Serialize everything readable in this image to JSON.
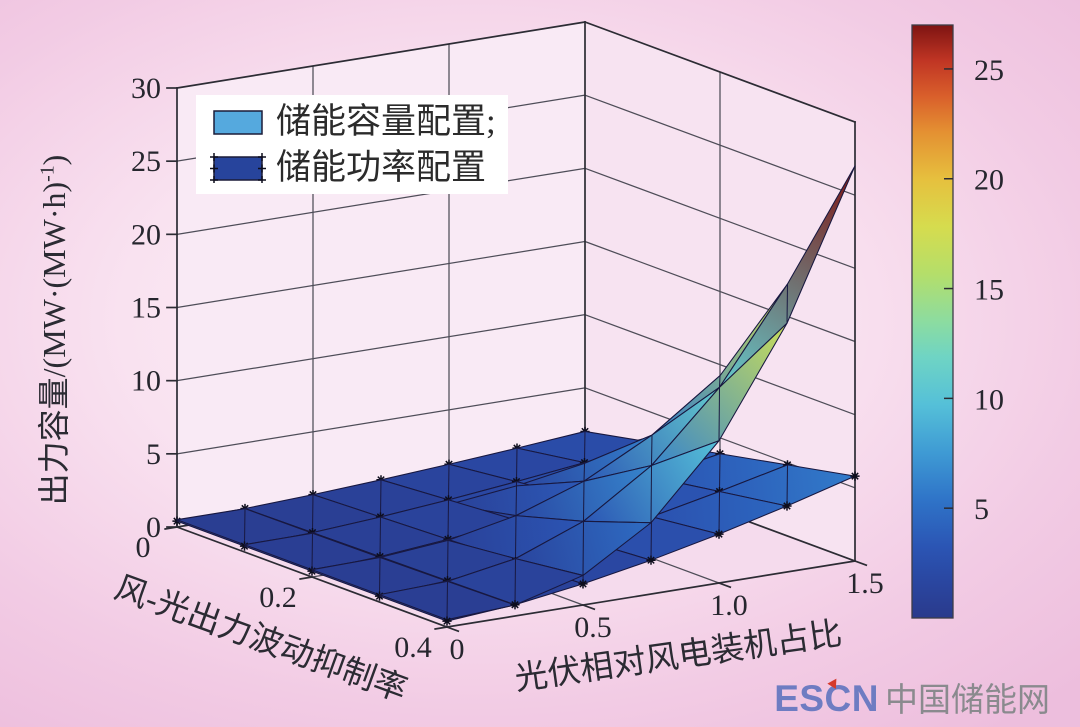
{
  "legend": {
    "items": [
      {
        "label": "储能容量配置;",
        "color": "#55a9de",
        "markers": false
      },
      {
        "label": "储能功率配置",
        "color": "#27449c",
        "markers": true
      }
    ]
  },
  "axes": {
    "z": {
      "label_main": "出力容量/(MW·(MW·h)",
      "label_sup": "-1",
      "label_close": ")",
      "tick_values": [
        0,
        5,
        10,
        15,
        20,
        25,
        30
      ],
      "tick_labels": [
        "0",
        "5",
        "10",
        "15",
        "20",
        "25",
        "30"
      ]
    },
    "x": {
      "label": "光伏相对风电装机占比",
      "tick_values": [
        0,
        0.5,
        1.0,
        1.5
      ],
      "tick_labels": [
        "0",
        "0.5",
        "1.0",
        "1.5"
      ]
    },
    "y": {
      "label": "风-光出力波动抑制率",
      "tick_values": [
        0,
        0.2,
        0.4
      ],
      "tick_labels": [
        "0",
        "0.2",
        "0.4"
      ]
    }
  },
  "colorbar": {
    "min": 0,
    "max": 27,
    "tick_values": [
      5,
      10,
      15,
      20,
      25
    ],
    "tick_labels": [
      "5",
      "10",
      "15",
      "20",
      "25"
    ],
    "position": "right"
  },
  "watermark": {
    "logo": "ESCN",
    "site": "中国储能网",
    "logo_color": "#6e7cc2",
    "site_color": "#8a8a8e",
    "accent_color": "#d63a2c"
  },
  "chart_data": {
    "type": "surface3d",
    "x_values": [
      0,
      0.25,
      0.5,
      0.75,
      1.0,
      1.25,
      1.5
    ],
    "y_values": [
      0,
      0.1,
      0.2,
      0.3,
      0.4
    ],
    "series": [
      {
        "name": "储能容量配置",
        "z": [
          [
            0.5,
            0.5,
            0.5,
            0.5,
            0.5,
            0.5,
            0.5
          ],
          [
            0.5,
            0.53,
            0.67,
            0.98,
            1.51,
            2.3,
            3.39
          ],
          [
            0.5,
            0.58,
            1.0,
            1.94,
            3.54,
            5.94,
            9.25
          ],
          [
            0.5,
            0.66,
            1.46,
            3.26,
            6.32,
            10.91,
            17.22
          ],
          [
            0.5,
            0.75,
            2.02,
            4.87,
            9.72,
            17.0,
            27.0
          ]
        ]
      },
      {
        "name": "储能功率配置",
        "z": [
          [
            0.4,
            0.51,
            0.71,
            0.97,
            1.28,
            1.63,
            2.02
          ],
          [
            0.4,
            0.57,
            0.89,
            1.31,
            1.8,
            2.35,
            2.97
          ],
          [
            0.4,
            0.64,
            1.07,
            1.64,
            2.31,
            3.07,
            3.91
          ],
          [
            0.4,
            0.7,
            1.26,
            1.98,
            2.82,
            3.79,
            4.86
          ],
          [
            0.4,
            0.77,
            1.44,
            2.31,
            3.34,
            4.51,
            5.8
          ]
        ]
      }
    ],
    "zlim": [
      0,
      30
    ],
    "clim": [
      0,
      27
    ],
    "colormap": "jet",
    "grid": true,
    "legend_position": "top-left",
    "colormap_stops": [
      [
        0.0,
        "#2a3a8c"
      ],
      [
        0.06,
        "#2a46a0"
      ],
      [
        0.12,
        "#2b55b4"
      ],
      [
        0.2,
        "#2f74c8"
      ],
      [
        0.28,
        "#3f9bd4"
      ],
      [
        0.36,
        "#55c0d8"
      ],
      [
        0.44,
        "#6fd4c4"
      ],
      [
        0.5,
        "#8cdca0"
      ],
      [
        0.58,
        "#b4de6a"
      ],
      [
        0.66,
        "#d6dc4e"
      ],
      [
        0.74,
        "#e6c03e"
      ],
      [
        0.82,
        "#e49032"
      ],
      [
        0.88,
        "#d95f2b"
      ],
      [
        0.94,
        "#c03524"
      ],
      [
        1.0,
        "#7e1412"
      ]
    ]
  }
}
